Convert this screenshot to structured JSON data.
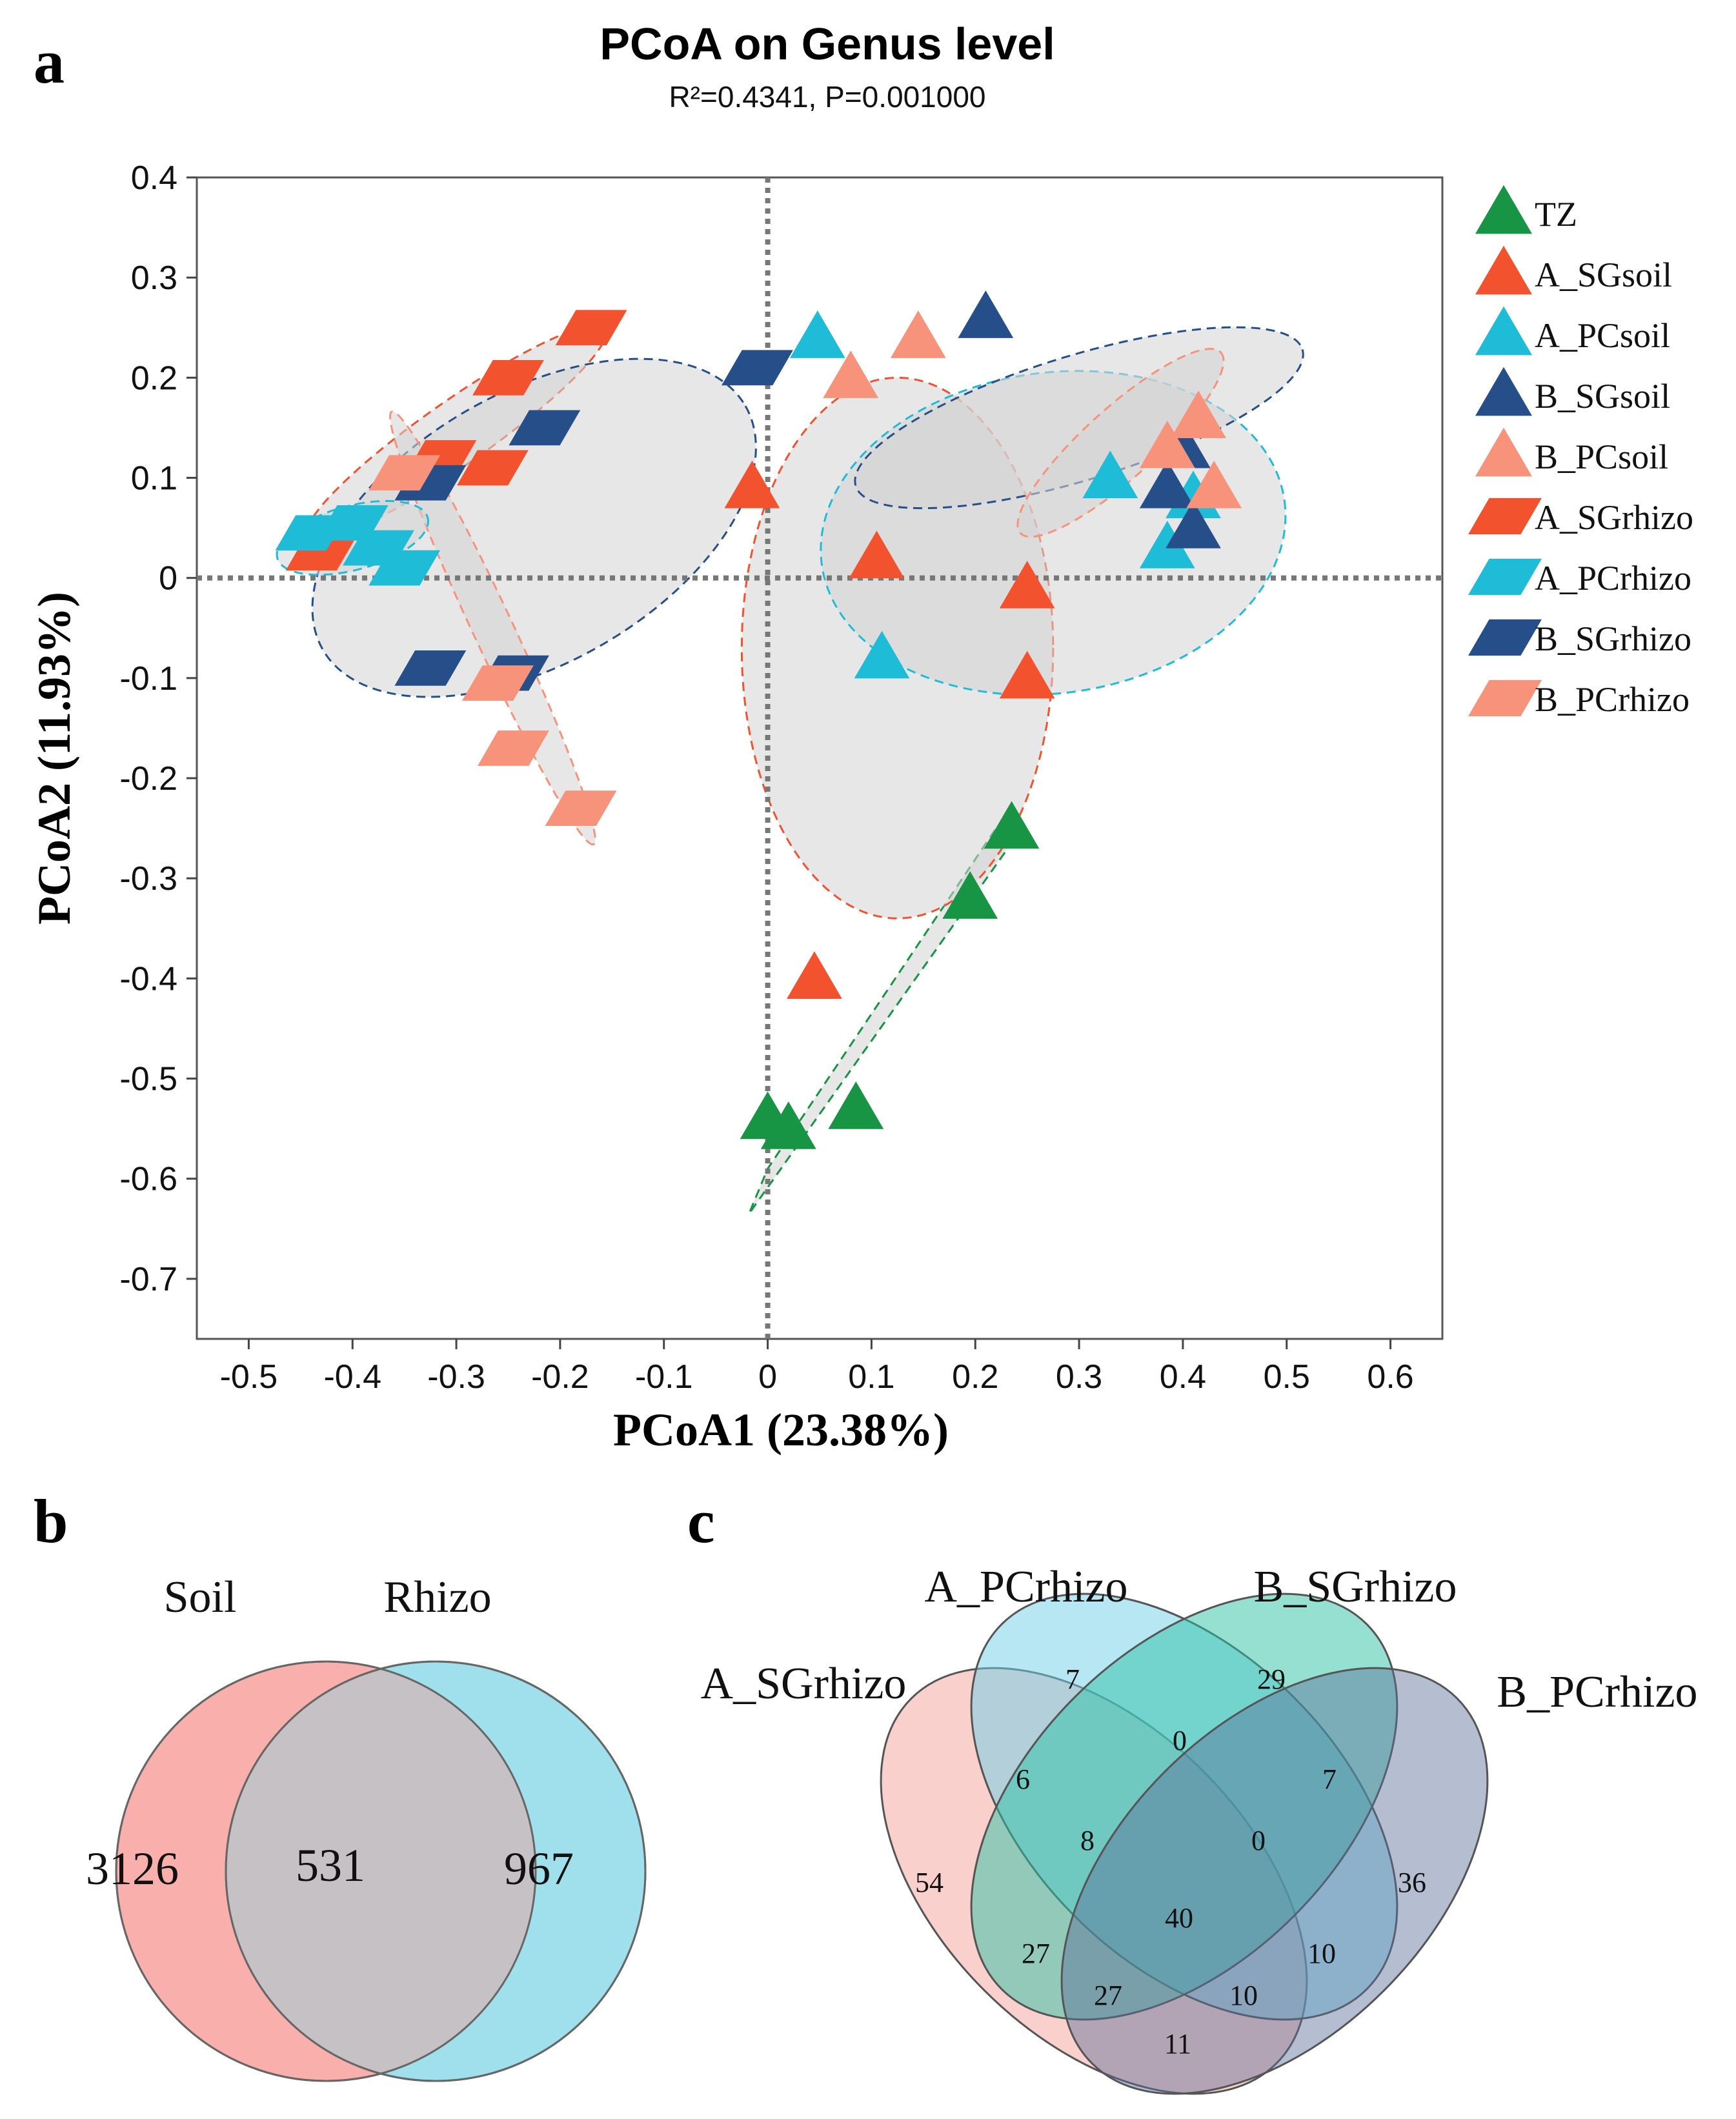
{
  "panels": {
    "a": "a",
    "b": "b",
    "c": "c"
  },
  "colors": {
    "TZ": "#179444",
    "A_SG": "#f2522e",
    "A_PC": "#1fbcd8",
    "B_SG": "#264f8a",
    "B_PC": "#f7937a",
    "ellipse_fill": "#d4d4d4",
    "venn_soil": "#f9b0ad",
    "venn_rhizo": "#9fe0ec",
    "venn_overlap": "#c6c1c5"
  },
  "chart_data": [
    {
      "type": "scatter",
      "title": "PCoA on Genus level",
      "subtitle": "R²=0.4341, P=0.001000",
      "xlabel": "PCoA1 (23.38%)",
      "ylabel": "PCoA2 (11.93%)",
      "xlim": [
        -0.55,
        0.65
      ],
      "ylim": [
        -0.76,
        0.4
      ],
      "xticks": [
        "-0.5",
        "-0.4",
        "-0.3",
        "-0.2",
        "-0.1",
        "0",
        "0.1",
        "0.2",
        "0.3",
        "0.4",
        "0.5",
        "0.6"
      ],
      "yticks": [
        "0.4",
        "0.3",
        "0.2",
        "0.1",
        "0",
        "-0.1",
        "-0.2",
        "-0.3",
        "-0.4",
        "-0.5",
        "-0.6",
        "-0.7"
      ],
      "legend_position": "right",
      "series": [
        {
          "name": "TZ",
          "marker": "triangle",
          "color_key": "TZ",
          "points": [
            [
              0.0,
              -0.54
            ],
            [
              0.02,
              -0.55
            ],
            [
              0.085,
              -0.53
            ],
            [
              0.195,
              -0.32
            ],
            [
              0.235,
              -0.25
            ]
          ]
        },
        {
          "name": "A_SGsoil",
          "marker": "triangle",
          "color_key": "A_SG",
          "points": [
            [
              -0.015,
              0.09
            ],
            [
              0.105,
              0.02
            ],
            [
              0.25,
              -0.01
            ],
            [
              0.25,
              -0.1
            ],
            [
              0.045,
              -0.4
            ]
          ]
        },
        {
          "name": "A_PCsoil",
          "marker": "triangle",
          "color_key": "A_PC",
          "points": [
            [
              0.048,
              0.24
            ],
            [
              0.11,
              -0.08
            ],
            [
              0.33,
              0.1
            ],
            [
              0.385,
              0.03
            ],
            [
              0.41,
              0.08
            ]
          ]
        },
        {
          "name": "B_SGsoil",
          "marker": "triangle",
          "color_key": "B_SG",
          "points": [
            [
              0.21,
              0.26
            ],
            [
              0.4,
              0.13
            ],
            [
              0.385,
              0.09
            ],
            [
              0.41,
              0.05
            ]
          ]
        },
        {
          "name": "B_PCsoil",
          "marker": "triangle",
          "color_key": "B_PC",
          "points": [
            [
              0.08,
              0.2
            ],
            [
              0.145,
              0.24
            ],
            [
              0.385,
              0.13
            ],
            [
              0.415,
              0.16
            ],
            [
              0.43,
              0.09
            ]
          ]
        },
        {
          "name": "A_SGrhizo",
          "marker": "parallelogram",
          "color_key": "A_SG",
          "points": [
            [
              -0.17,
              0.25
            ],
            [
              -0.25,
              0.2
            ],
            [
              -0.265,
              0.11
            ],
            [
              -0.315,
              0.12
            ],
            [
              -0.43,
              0.025
            ]
          ]
        },
        {
          "name": "A_PCrhizo",
          "marker": "parallelogram",
          "color_key": "A_PC",
          "points": [
            [
              -0.44,
              0.045
            ],
            [
              -0.4,
              0.055
            ],
            [
              -0.375,
              0.03
            ],
            [
              -0.35,
              0.01
            ]
          ]
        },
        {
          "name": "B_SGrhizo",
          "marker": "parallelogram",
          "color_key": "B_SG",
          "points": [
            [
              -0.01,
              0.21
            ],
            [
              -0.215,
              0.15
            ],
            [
              -0.325,
              0.095
            ],
            [
              -0.325,
              -0.09
            ],
            [
              -0.245,
              -0.095
            ]
          ]
        },
        {
          "name": "B_PCrhizo",
          "marker": "parallelogram",
          "color_key": "B_PC",
          "points": [
            [
              -0.35,
              0.105
            ],
            [
              -0.26,
              -0.105
            ],
            [
              -0.245,
              -0.17
            ],
            [
              -0.18,
              -0.23
            ]
          ]
        }
      ],
      "ellipses": [
        {
          "group": "TZ",
          "color_key": "TZ",
          "points": [
            [
              0.245,
              -0.25
            ],
            [
              -0.018,
              -0.635
            ],
            [
              0.0,
              -0.59
            ],
            [
              0.22,
              -0.25
            ]
          ]
        },
        {
          "group": "A_SGsoil",
          "color_key": "A_SG",
          "center": [
            0.125,
            -0.07
          ],
          "radii": [
            0.15,
            0.27
          ],
          "angle_deg": 0
        },
        {
          "group": "A_PCsoil",
          "color_key": "A_PC",
          "center": [
            0.275,
            0.045
          ],
          "radii": [
            0.225,
            0.16
          ],
          "angle_deg": -8
        },
        {
          "group": "B_SGsoil",
          "color_key": "B_SG",
          "center": [
            0.3,
            0.16
          ],
          "radii": [
            0.225,
            0.062
          ],
          "angle_deg": -17
        },
        {
          "group": "B_PCsoil",
          "color_key": "B_PC",
          "center": [
            0.34,
            0.135
          ],
          "radii": [
            0.13,
            0.035
          ],
          "angle_deg": -42
        },
        {
          "group": "A_SGrhizo",
          "color_key": "A_SG",
          "center": [
            -0.3,
            0.145
          ],
          "radii": [
            0.175,
            0.032
          ],
          "angle_deg": -35
        },
        {
          "group": "B_SGrhizo",
          "color_key": "B_SG",
          "center": [
            -0.225,
            0.05
          ],
          "radii": [
            0.235,
            0.135
          ],
          "angle_deg": -30
        },
        {
          "group": "B_PCrhizo",
          "color_key": "B_PC",
          "center": [
            -0.265,
            -0.05
          ],
          "radii": [
            0.23,
            0.02
          ],
          "angle_deg": 65
        },
        {
          "group": "A_PCrhizo",
          "color_key": "A_PC",
          "center": [
            -0.4,
            0.04
          ],
          "radii": [
            0.075,
            0.032
          ],
          "angle_deg": -15
        }
      ]
    },
    {
      "type": "venn",
      "sets": [
        "Soil",
        "Rhizo"
      ],
      "regions": {
        "soil_only": "3126",
        "both": "531",
        "rhizo_only": "967"
      }
    },
    {
      "type": "venn",
      "sets": [
        "A_SGrhizo",
        "A_PCrhizo",
        "B_SGrhizo",
        "B_PCrhizo"
      ],
      "regions": {
        "a_sg_only": "54",
        "a_pc_only": "7",
        "b_sg_only": "29",
        "b_pc_only": "36",
        "a_sg_a_pc": "6",
        "a_pc_b_sg": "0",
        "b_sg_b_pc": "7",
        "a_sg_a_pc_b_sg": "8",
        "a_pc_b_sg_b_pc": "0",
        "all": "40",
        "a_sg_b_sg": "27",
        "a_pc_b_pc": "10",
        "a_sg_a_pc_b_pc": "27",
        "a_pc_b_sg_b_pc_x": "10",
        "a_sg_b_pc": "11"
      }
    }
  ]
}
